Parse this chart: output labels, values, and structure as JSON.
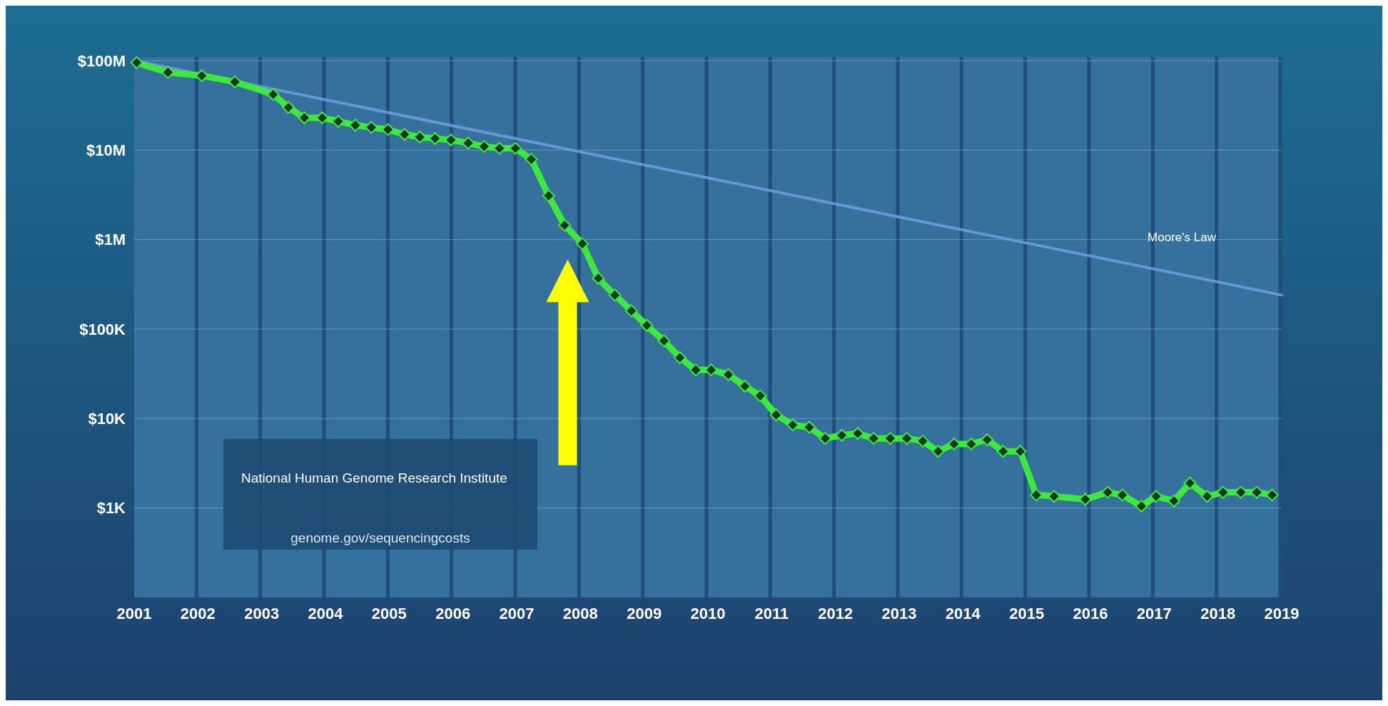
{
  "chart_data": {
    "type": "line",
    "log": "y",
    "grid": true,
    "xlim": [
      2001,
      2019
    ],
    "xticks": [
      2001,
      2002,
      2003,
      2004,
      2005,
      2006,
      2007,
      2008,
      2009,
      2010,
      2011,
      2012,
      2013,
      2014,
      2015,
      2016,
      2017,
      2018,
      2019
    ],
    "ylim": [
      100,
      100000000
    ],
    "yticks": [
      {
        "value": 1000,
        "label": "$1K"
      },
      {
        "value": 10000,
        "label": "$10K"
      },
      {
        "value": 100000,
        "label": "$100K"
      },
      {
        "value": 1000000,
        "label": "$1M"
      },
      {
        "value": 10000000,
        "label": "$10M"
      },
      {
        "value": 100000000,
        "label": "$100M"
      }
    ],
    "annotations": [
      "National Human Genome Research Institute",
      "genome.gov/sequencingcosts"
    ],
    "series": [
      {
        "color": "#3ee83e",
        "marker": "diamond",
        "x": [
          2001.04,
          2001.53,
          2002.06,
          2002.58,
          2003.18,
          2003.42,
          2003.67,
          2003.95,
          2004.2,
          2004.47,
          2004.72,
          2004.98,
          2005.24,
          2005.48,
          2005.72,
          2005.97,
          2006.24,
          2006.49,
          2006.73,
          2006.98,
          2007.23,
          2007.5,
          2007.75,
          2008.03,
          2008.28,
          2008.54,
          2008.8,
          2009.04,
          2009.31,
          2009.56,
          2009.81,
          2010.05,
          2010.32,
          2010.58,
          2010.82,
          2011.07,
          2011.33,
          2011.59,
          2011.84,
          2012.1,
          2012.35,
          2012.6,
          2012.86,
          2013.12,
          2013.37,
          2013.61,
          2013.86,
          2014.13,
          2014.38,
          2014.63,
          2014.9,
          2015.15,
          2015.43,
          2015.92,
          2016.27,
          2016.5,
          2016.8,
          2017.03,
          2017.31,
          2017.56,
          2017.83,
          2018.08,
          2018.36,
          2018.61,
          2018.85
        ],
        "values": [
          95000000,
          74000000,
          68000000,
          58000000,
          42000000,
          30000000,
          23000000,
          23000000,
          21000000,
          19000000,
          18000000,
          17000000,
          15000000,
          14000000,
          13500000,
          13000000,
          12000000,
          11000000,
          10500000,
          10500000,
          7900000,
          3100000,
          1450000,
          900000,
          370000,
          240000,
          160000,
          110000,
          74000,
          48000,
          35000,
          35000,
          31000,
          23000,
          18000,
          11000,
          8500,
          8000,
          6000,
          6500,
          6800,
          6000,
          6000,
          6000,
          5600,
          4300,
          5200,
          5200,
          5800,
          4300,
          4300,
          1400,
          1350,
          1250,
          1500,
          1400,
          1050,
          1350,
          1200,
          1900,
          1350,
          1500,
          1500,
          1500,
          1400
        ]
      },
      {
        "name": "Moore's Law",
        "color": "#6f9fe0",
        "marker": "none",
        "x": [
          2001,
          2019
        ],
        "values": [
          100000000,
          240000
        ]
      }
    ]
  }
}
